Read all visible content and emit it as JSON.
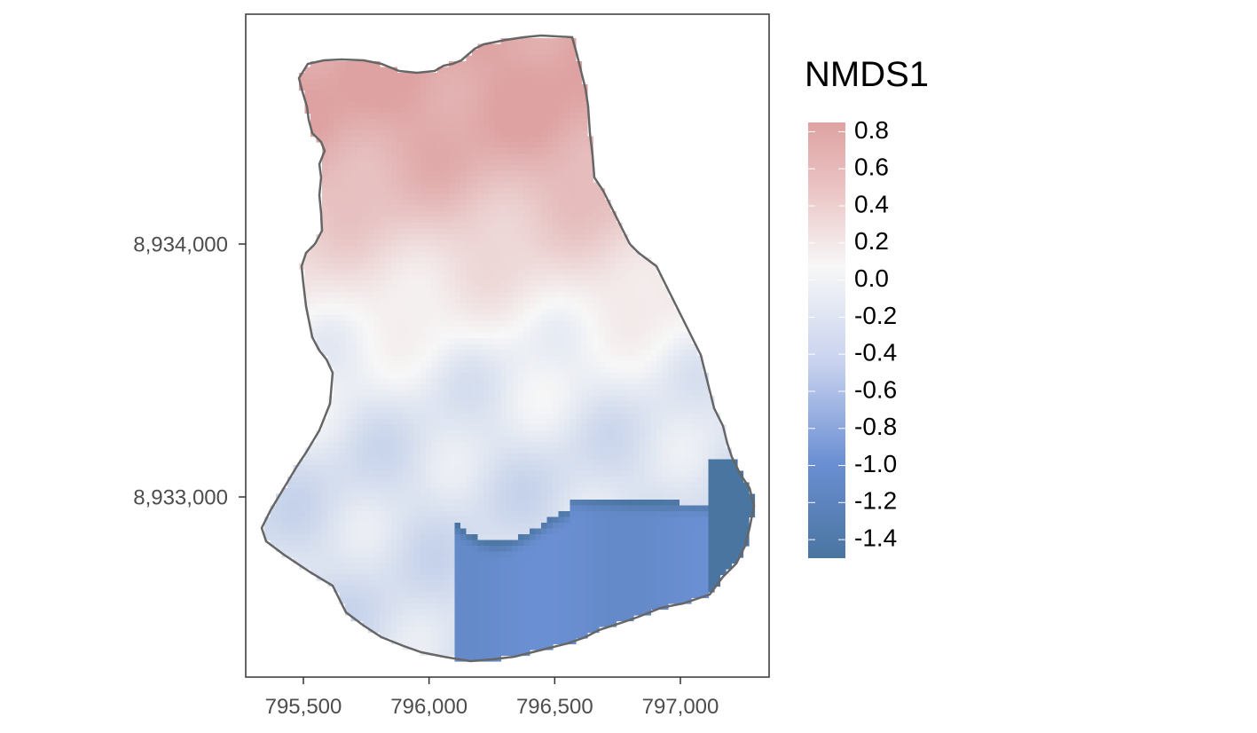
{
  "chart_data": {
    "type": "heatmap",
    "legend": {
      "title": "NMDS1",
      "breaks": [
        {
          "label": "0.8",
          "value": 0.8
        },
        {
          "label": "0.6",
          "value": 0.6
        },
        {
          "label": "0.4",
          "value": 0.4
        },
        {
          "label": "0.2",
          "value": 0.2
        },
        {
          "label": "0.0",
          "value": 0.0
        },
        {
          "label": "-0.2",
          "value": -0.2
        },
        {
          "label": "-0.4",
          "value": -0.4
        },
        {
          "label": "-0.6",
          "value": -0.6
        },
        {
          "label": "-0.8",
          "value": -0.8
        },
        {
          "label": "-1.0",
          "value": -1.0
        },
        {
          "label": "-1.2",
          "value": -1.2
        },
        {
          "label": "-1.4",
          "value": -1.4
        }
      ],
      "placement": "right"
    },
    "value_range": [
      -1.5,
      0.85
    ],
    "colors": {
      "low": "#4a75a0",
      "mid_low": "#6b8fd3",
      "mid": "#f7f7f7",
      "high": "#dea2a2"
    },
    "x_axis": {
      "ticks": [
        {
          "label": "795,500",
          "value": 795500
        },
        {
          "label": "796,000",
          "value": 796000
        },
        {
          "label": "796,500",
          "value": 796500
        },
        {
          "label": "797,000",
          "value": 797000
        }
      ],
      "range": [
        795270,
        797350
      ]
    },
    "y_axis": {
      "ticks": [
        {
          "label": "8,934,000",
          "value": 8934000
        },
        {
          "label": "8,933,000",
          "value": 8933000
        }
      ],
      "range": [
        8932300,
        8934900
      ]
    },
    "grid": false,
    "boundary_outline": true
  }
}
